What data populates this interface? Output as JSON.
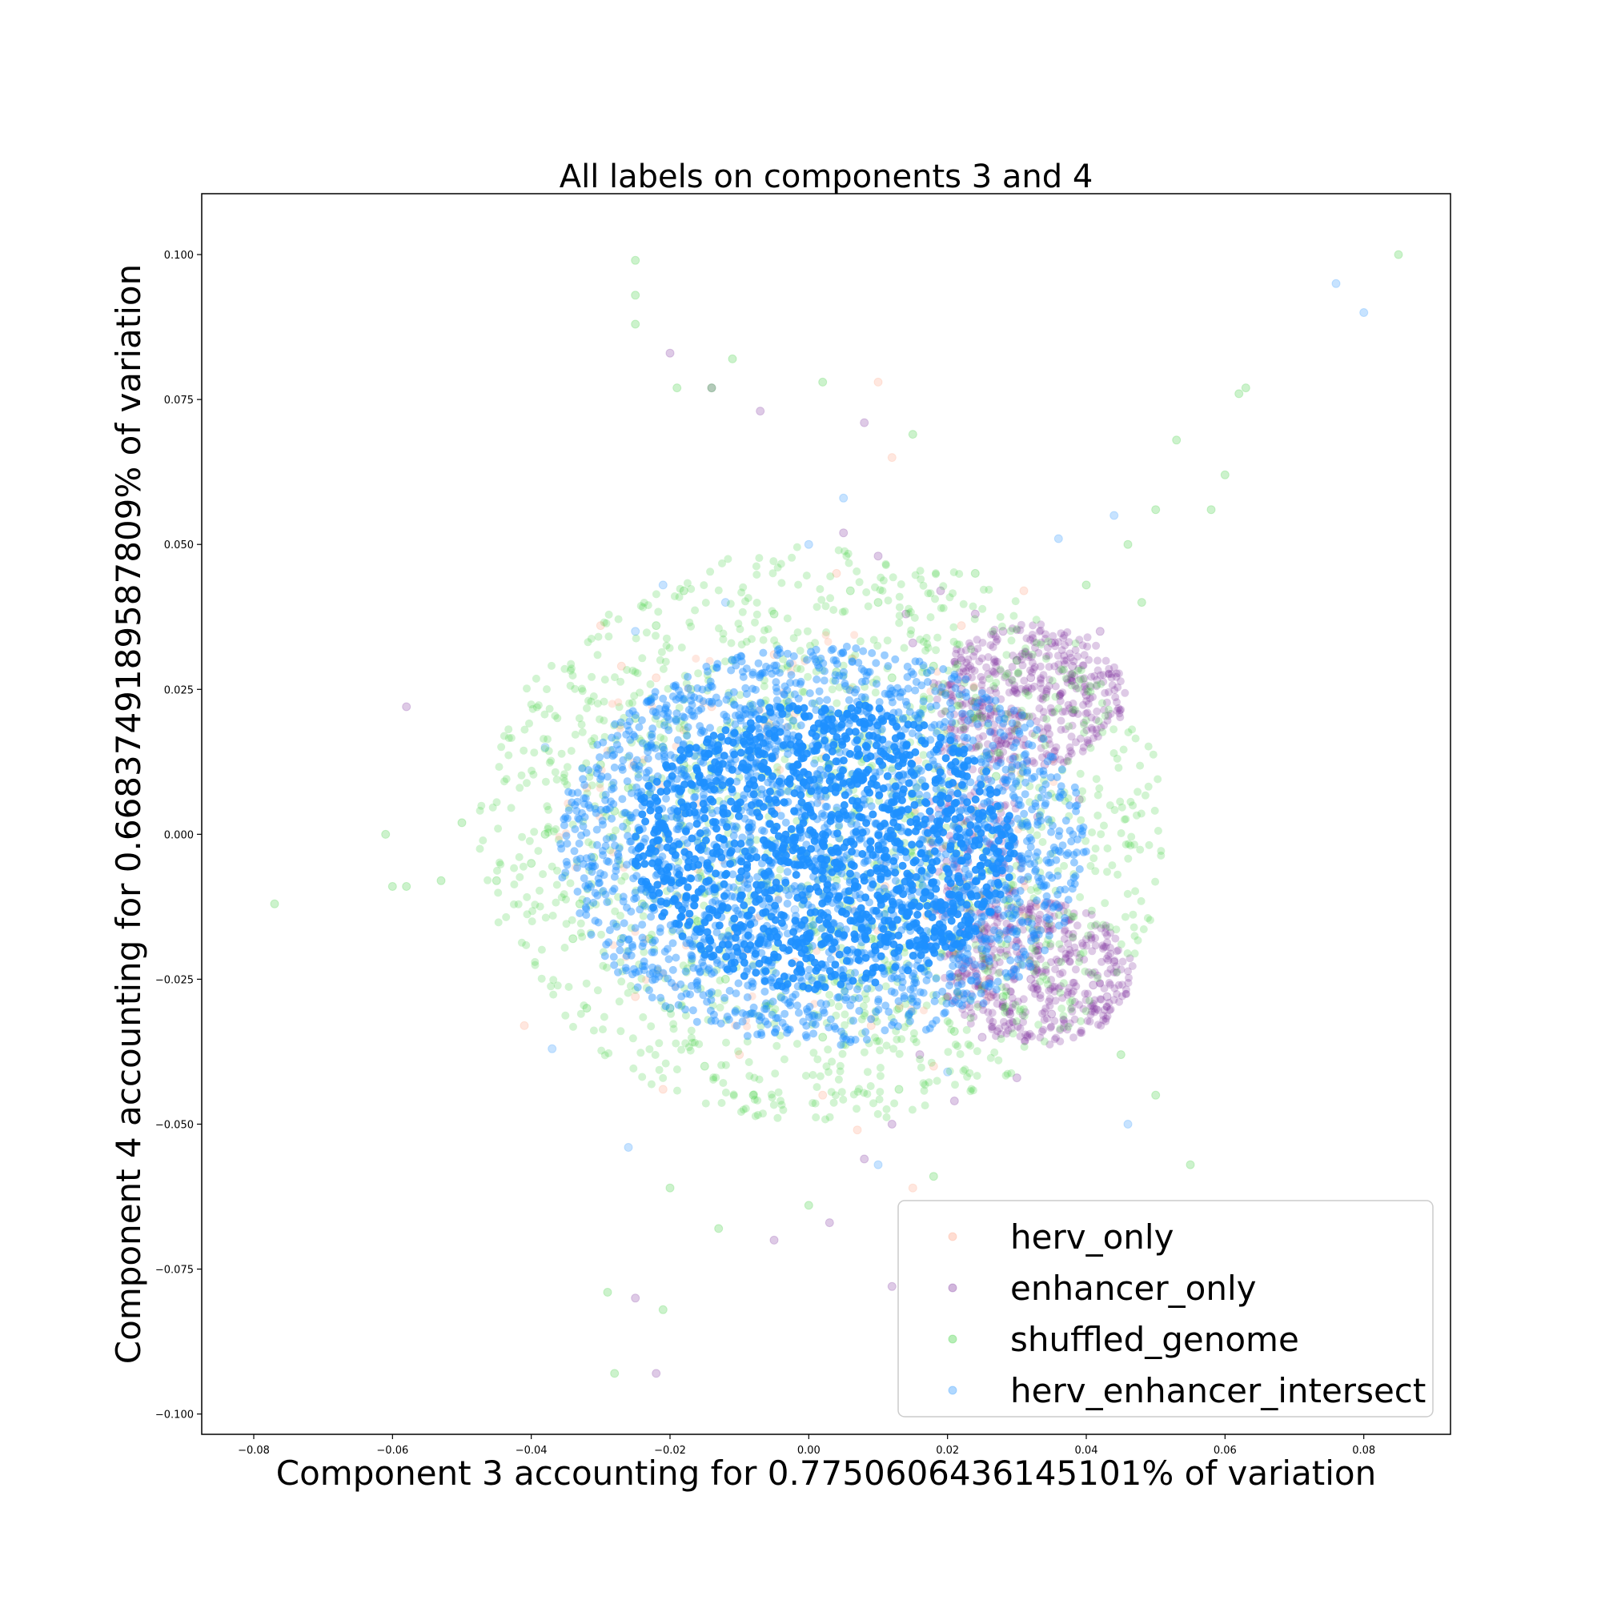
{
  "chart_data": {
    "type": "scatter",
    "title": "All labels on components 3 and 4",
    "xlabel": "Component 3 accounting for 0.7750606436145101% of variation",
    "ylabel": "Component 4 accounting for 0.6683749189587809% of variation",
    "xlim": [
      -0.0875,
      0.0925
    ],
    "ylim": [
      -0.1035,
      0.1105
    ],
    "xticks": [
      -0.08,
      -0.06,
      -0.04,
      -0.02,
      0.0,
      0.02,
      0.04,
      0.06,
      0.08
    ],
    "xtick_labels": [
      "−0.08",
      "−0.06",
      "−0.04",
      "−0.02",
      "0.00",
      "0.02",
      "0.04",
      "0.06",
      "0.08"
    ],
    "yticks": [
      -0.1,
      -0.075,
      -0.05,
      -0.025,
      0.0,
      0.025,
      0.05,
      0.075,
      0.1
    ],
    "ytick_labels": [
      "−0.100",
      "−0.075",
      "−0.050",
      "−0.025",
      "0.000",
      "0.025",
      "0.050",
      "0.075",
      "0.100"
    ],
    "grid": false,
    "legend_position": "lower-right",
    "marker_alpha": 0.25,
    "series": [
      {
        "name": "herv_only",
        "color": "#ff9f7f",
        "points": [
          [
            -0.03,
            0.036
          ],
          [
            -0.041,
            -0.033
          ],
          [
            0.01,
            0.078
          ],
          [
            0.012,
            0.065
          ],
          [
            -0.021,
            -0.044
          ],
          [
            0.007,
            -0.051
          ],
          [
            -0.027,
            0.029
          ],
          [
            -0.022,
            0.027
          ],
          [
            0.015,
            -0.061
          ],
          [
            -0.032,
            0.008
          ],
          [
            0.018,
            -0.04
          ],
          [
            0.031,
            0.042
          ],
          [
            -0.025,
            -0.028
          ],
          [
            0.004,
            0.045
          ],
          [
            -0.01,
            -0.038
          ],
          [
            0.022,
            0.036
          ],
          [
            -0.018,
            0.018
          ],
          [
            0.009,
            -0.033
          ],
          [
            -0.005,
            0.031
          ],
          [
            0.026,
            -0.028
          ],
          [
            0.002,
            -0.045
          ],
          [
            -0.014,
            0.022
          ],
          [
            0.02,
            0.018
          ],
          [
            -0.009,
            -0.02
          ],
          [
            0.006,
            0.025
          ],
          [
            -0.002,
            -0.022
          ],
          [
            0.013,
            0.01
          ],
          [
            -0.016,
            -0.006
          ],
          [
            0.017,
            -0.014
          ],
          [
            0.0,
            0.008
          ],
          [
            -0.007,
            0.012
          ],
          [
            0.011,
            -0.009
          ]
        ]
      },
      {
        "name": "enhancer_only",
        "color": "#7b2d9b",
        "points": [
          [
            -0.058,
            0.022
          ],
          [
            -0.02,
            0.083
          ],
          [
            -0.014,
            0.077
          ],
          [
            -0.007,
            0.073
          ],
          [
            0.008,
            0.071
          ],
          [
            -0.022,
            -0.093
          ],
          [
            0.012,
            -0.078
          ],
          [
            -0.025,
            -0.08
          ],
          [
            0.035,
            0.033
          ],
          [
            0.038,
            0.029
          ],
          [
            0.032,
            0.027
          ],
          [
            0.04,
            0.024
          ],
          [
            0.036,
            -0.022
          ],
          [
            0.041,
            -0.026
          ],
          [
            0.033,
            -0.02
          ],
          [
            0.029,
            -0.031
          ],
          [
            0.043,
            -0.028
          ],
          [
            0.028,
            0.035
          ],
          [
            0.024,
            0.038
          ],
          [
            0.03,
            0.018
          ],
          [
            0.027,
            -0.012
          ],
          [
            0.022,
            0.03
          ],
          [
            0.019,
            0.042
          ],
          [
            0.016,
            -0.038
          ],
          [
            0.025,
            -0.035
          ],
          [
            0.034,
            0.012
          ],
          [
            0.031,
            -0.008
          ],
          [
            0.02,
            -0.028
          ],
          [
            0.015,
            0.033
          ],
          [
            0.039,
            0.006
          ],
          [
            0.026,
            0.022
          ],
          [
            0.023,
            -0.022
          ],
          [
            0.037,
            -0.015
          ],
          [
            0.018,
            0.026
          ],
          [
            0.03,
            -0.042
          ],
          [
            0.01,
            0.048
          ],
          [
            0.005,
            0.052
          ],
          [
            0.042,
            0.035
          ],
          [
            0.044,
            -0.022
          ],
          [
            0.021,
            -0.046
          ],
          [
            0.012,
            -0.05
          ],
          [
            0.008,
            -0.056
          ],
          [
            0.003,
            -0.067
          ],
          [
            -0.005,
            -0.07
          ],
          [
            0.027,
            0.005
          ],
          [
            0.025,
            0.011
          ],
          [
            0.028,
            -0.003
          ],
          [
            0.033,
            0.003
          ],
          [
            0.035,
            -0.031
          ],
          [
            0.017,
            -0.019
          ],
          [
            0.019,
            0.015
          ],
          [
            0.024,
            -0.016
          ],
          [
            0.014,
            0.038
          ],
          [
            0.038,
            0.021
          ],
          [
            0.03,
            0.03
          ],
          [
            0.032,
            -0.025
          ],
          [
            0.022,
            0.025
          ],
          [
            0.026,
            -0.025
          ]
        ]
      },
      {
        "name": "shuffled_genome",
        "color": "#32cd32",
        "points": [
          [
            -0.025,
            0.099
          ],
          [
            -0.025,
            0.093
          ],
          [
            -0.025,
            0.088
          ],
          [
            0.085,
            0.1
          ],
          [
            0.063,
            0.077
          ],
          [
            0.062,
            0.076
          ],
          [
            0.06,
            0.062
          ],
          [
            0.058,
            0.056
          ],
          [
            0.053,
            0.068
          ],
          [
            0.05,
            0.056
          ],
          [
            -0.077,
            -0.012
          ],
          [
            -0.061,
            0.0
          ],
          [
            -0.06,
            -0.009
          ],
          [
            -0.058,
            -0.009
          ],
          [
            -0.053,
            -0.008
          ],
          [
            -0.05,
            0.002
          ],
          [
            -0.045,
            -0.008
          ],
          [
            -0.04,
            -0.005
          ],
          [
            -0.038,
            0.0
          ],
          [
            -0.034,
            -0.018
          ],
          [
            -0.032,
            -0.03
          ],
          [
            -0.028,
            -0.093
          ],
          [
            -0.029,
            -0.079
          ],
          [
            -0.021,
            -0.082
          ],
          [
            -0.011,
            0.082
          ],
          [
            -0.014,
            0.077
          ],
          [
            -0.019,
            0.077
          ],
          [
            0.002,
            0.078
          ],
          [
            0.015,
            0.069
          ],
          [
            0.055,
            -0.057
          ],
          [
            0.05,
            -0.045
          ],
          [
            0.045,
            -0.038
          ],
          [
            0.04,
            0.043
          ],
          [
            0.046,
            0.05
          ],
          [
            0.048,
            0.04
          ],
          [
            -0.013,
            -0.068
          ],
          [
            -0.02,
            -0.061
          ],
          [
            0.0,
            -0.064
          ],
          [
            0.018,
            -0.059
          ],
          [
            -0.018,
            0.042
          ],
          [
            -0.022,
            0.036
          ],
          [
            0.006,
            0.042
          ],
          [
            -0.03,
            0.012
          ],
          [
            -0.033,
            -0.012
          ],
          [
            -0.027,
            -0.018
          ],
          [
            0.024,
            0.045
          ],
          [
            0.021,
            -0.034
          ],
          [
            0.028,
            -0.028
          ],
          [
            0.013,
            -0.044
          ],
          [
            -0.008,
            -0.045
          ],
          [
            -0.015,
            -0.04
          ],
          [
            0.01,
            0.04
          ],
          [
            0.03,
            0.03
          ],
          [
            -0.02,
            -0.03
          ],
          [
            -0.025,
            0.02
          ],
          [
            0.018,
            0.029
          ],
          [
            0.025,
            -0.02
          ],
          [
            -0.017,
            0.025
          ],
          [
            0.002,
            -0.035
          ],
          [
            -0.005,
            0.038
          ],
          [
            0.022,
            0.015
          ],
          [
            -0.026,
            0.008
          ],
          [
            -0.024,
            -0.012
          ],
          [
            0.026,
            -0.006
          ],
          [
            -0.012,
            -0.025
          ],
          [
            0.012,
            0.027
          ],
          [
            0.02,
            -0.018
          ],
          [
            -0.022,
            -0.002
          ],
          [
            0.024,
            0.004
          ],
          [
            -0.018,
            0.012
          ],
          [
            -0.016,
            -0.015
          ],
          [
            0.017,
            -0.012
          ],
          [
            -0.009,
            0.018
          ],
          [
            0.006,
            -0.024
          ],
          [
            0.014,
            0.02
          ],
          [
            -0.003,
            0.022
          ],
          [
            -0.019,
            0.003
          ],
          [
            0.021,
            -0.002
          ],
          [
            0.0,
            -0.02
          ],
          [
            0.008,
            0.017
          ],
          [
            -0.006,
            -0.017
          ],
          [
            -0.013,
            0.008
          ],
          [
            0.016,
            0.006
          ],
          [
            -0.01,
            -0.008
          ],
          [
            0.011,
            -0.01
          ],
          [
            0.003,
            0.012
          ],
          [
            -0.015,
            0.0
          ],
          [
            0.019,
            0.011
          ],
          [
            -0.021,
            0.015
          ],
          [
            -0.023,
            -0.018
          ],
          [
            0.023,
            -0.012
          ],
          [
            0.009,
            -0.018
          ],
          [
            -0.004,
            -0.028
          ],
          [
            0.004,
            0.028
          ],
          [
            -0.028,
            0.004
          ],
          [
            -0.031,
            -0.004
          ],
          [
            0.027,
            0.01
          ],
          [
            0.029,
            -0.014
          ],
          [
            -0.011,
            0.03
          ],
          [
            0.013,
            -0.03
          ]
        ]
      },
      {
        "name": "herv_enhancer_intersect",
        "color": "#1e90ff",
        "points": [
          [
            0.076,
            0.095
          ],
          [
            0.08,
            0.09
          ],
          [
            -0.037,
            -0.037
          ],
          [
            -0.026,
            -0.054
          ],
          [
            -0.038,
            0.015
          ],
          [
            0.044,
            0.055
          ],
          [
            0.046,
            -0.05
          ],
          [
            -0.021,
            0.043
          ],
          [
            0.036,
            0.051
          ],
          [
            0.0,
            0.05
          ],
          [
            -0.02,
            -0.03
          ],
          [
            0.01,
            -0.057
          ],
          [
            -0.012,
            0.04
          ],
          [
            0.005,
            0.058
          ],
          [
            0.02,
            -0.041
          ],
          [
            -0.025,
            0.035
          ],
          [
            0.0,
            0.0
          ],
          [
            0.002,
            0.003
          ],
          [
            -0.003,
            -0.002
          ],
          [
            0.005,
            -0.004
          ],
          [
            -0.006,
            0.005
          ],
          [
            0.008,
            0.006
          ],
          [
            -0.009,
            -0.007
          ],
          [
            0.011,
            -0.001
          ],
          [
            -0.012,
            0.002
          ],
          [
            0.014,
            0.004
          ],
          [
            -0.014,
            -0.004
          ],
          [
            0.016,
            -0.006
          ],
          [
            -0.016,
            0.008
          ],
          [
            0.018,
            0.001
          ],
          [
            -0.018,
            -0.001
          ],
          [
            0.003,
            0.012
          ],
          [
            -0.002,
            -0.013
          ],
          [
            0.007,
            0.014
          ],
          [
            -0.007,
            -0.014
          ],
          [
            0.012,
            0.011
          ],
          [
            -0.012,
            -0.011
          ],
          [
            0.013,
            -0.012
          ],
          [
            -0.011,
            0.012
          ],
          [
            0.001,
            0.016
          ],
          [
            0.0,
            -0.016
          ],
          [
            0.019,
            -0.004
          ],
          [
            -0.019,
            0.004
          ],
          [
            0.009,
            -0.016
          ],
          [
            -0.008,
            0.016
          ],
          [
            0.015,
            0.009
          ],
          [
            -0.015,
            -0.009
          ],
          [
            0.004,
            -0.009
          ],
          [
            -0.004,
            0.009
          ],
          [
            0.01,
            0.0
          ]
        ]
      }
    ]
  }
}
